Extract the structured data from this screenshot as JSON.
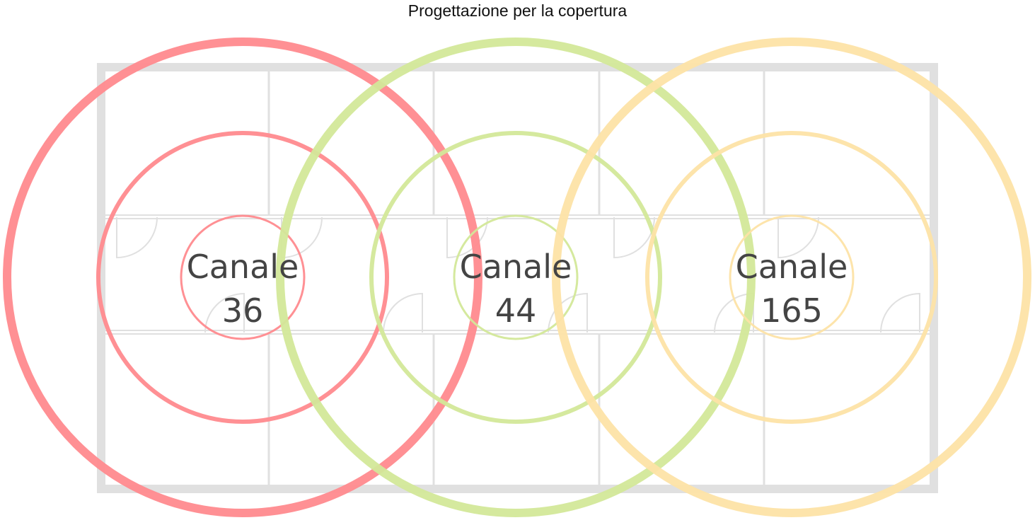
{
  "title": "Progettazione per la copertura",
  "colors": {
    "wall": "#e0e0e0",
    "red": "#ff8a8e",
    "green": "#d3e899",
    "yellow": "#fde3a7",
    "text": "#444444"
  },
  "channels": [
    {
      "label": "Canale",
      "number": "36",
      "color": "#ff8a8e"
    },
    {
      "label": "Canale",
      "number": "44",
      "color": "#d3e899"
    },
    {
      "label": "Canale",
      "number": "165",
      "color": "#fde3a7"
    }
  ]
}
